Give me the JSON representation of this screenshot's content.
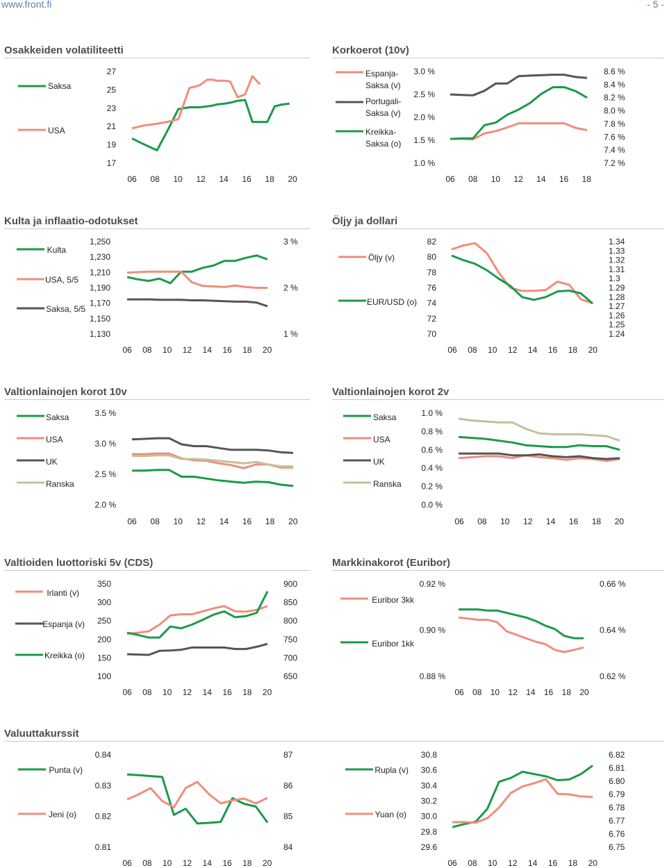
{
  "header": {
    "site_url": "www.front.fi",
    "page_number": "- 5 -"
  },
  "colors": {
    "green": "#1a9a4a",
    "salmon": "#ee8e7a",
    "gray": "#555555",
    "khaki": "#c8bf98",
    "title": "#4d4d4d",
    "rule": "#c8c8c8"
  },
  "sections": {
    "vol": "Osakkeiden volatiliteetti",
    "korko": "Korkoerot (10v)",
    "kulta": "Kulta ja inflaatio-odotukset",
    "oljy": "Öljy ja dollari",
    "gov10": "Valtionlainojen korot 10v",
    "gov2": "Valtionlainojen korot 2v",
    "cds": "Valtioiden luottoriski 5v (CDS)",
    "euribor": "Markkinakorot (Euribor)",
    "fx": "Valuuttakurssit"
  },
  "chart_data": [
    {
      "id": "vol",
      "type": "line",
      "title": "Osakkeiden volatiliteetti",
      "x": [
        0,
        0.12,
        0.27,
        0.38,
        0.5,
        0.62,
        0.73,
        0.81,
        0.88,
        0.91,
        1.0,
        1.06,
        1.14,
        1.22,
        1.3,
        1.38,
        1.46,
        1.54,
        1.62,
        1.7,
        1.74
      ],
      "x_ticks": [
        "06",
        "08",
        "10",
        "12",
        "14",
        "16",
        "18",
        "20"
      ],
      "y_left": {
        "ticks": [
          "27",
          "25",
          "23",
          "21",
          "19",
          "17"
        ],
        "range": [
          17,
          27
        ]
      },
      "series": [
        {
          "name": "Saksa",
          "axis": "left",
          "color": "green",
          "values": [
            19.7,
            19.1,
            18.4,
            20.5,
            22.9,
            23.1,
            23.1,
            23.2,
            23.3,
            23.4,
            23.5,
            23.6,
            23.8,
            23.9,
            21.5,
            21.5,
            21.5,
            23.2,
            23.4,
            23.5,
            null
          ]
        },
        {
          "name": "USA",
          "axis": "left",
          "color": "salmon",
          "values": [
            20.8,
            21.1,
            21.3,
            21.5,
            21.8,
            25.2,
            25.5,
            26.1,
            26.1,
            26.0,
            26.0,
            25.9,
            24.2,
            24.5,
            26.5,
            25.6,
            null,
            null,
            null,
            null,
            null
          ]
        }
      ]
    },
    {
      "id": "korko",
      "type": "line",
      "title": "Korkoerot (10v)",
      "x_ticks": [
        "06",
        "08",
        "10",
        "12",
        "14",
        "16",
        "18"
      ],
      "y_left": {
        "ticks": [
          "3.0 %",
          "2.5 %",
          "2.0 %",
          "1.5 %",
          "1.0 %"
        ],
        "range": [
          1.0,
          3.0
        ]
      },
      "y_right": {
        "ticks": [
          "8.6 %",
          "8.4 %",
          "8.2 %",
          "8.0 %",
          "7.8 %",
          "7.6 %",
          "7.4 %",
          "7.2 %"
        ],
        "range": [
          7.2,
          8.6
        ]
      },
      "series": [
        {
          "name": "Espanja-Saksa (v)",
          "axis": "left",
          "color": "salmon",
          "values": [
            1.53,
            1.53,
            1.52,
            1.65,
            1.7,
            1.78,
            1.87,
            1.87,
            1.87,
            1.87,
            1.87,
            1.77,
            1.72
          ]
        },
        {
          "name": "Portugali-Saksa (v)",
          "axis": "left",
          "color": "gray",
          "values": [
            2.5,
            2.49,
            2.48,
            2.58,
            2.74,
            2.74,
            2.9,
            2.91,
            2.92,
            2.93,
            2.93,
            2.88,
            2.86
          ]
        },
        {
          "name": "Kreikka-Saksa (o)",
          "axis": "right",
          "color": "green",
          "values": [
            7.57,
            7.58,
            7.58,
            7.78,
            7.82,
            7.94,
            8.02,
            8.12,
            8.26,
            8.36,
            8.36,
            8.3,
            8.2
          ]
        }
      ]
    },
    {
      "id": "kulta",
      "type": "line",
      "title": "Kulta ja inflaatio-odotukset",
      "x_ticks": [
        "06",
        "08",
        "10",
        "12",
        "14",
        "16",
        "18",
        "20"
      ],
      "y_left": {
        "ticks": [
          "1,250",
          "1,230",
          "1,210",
          "1,190",
          "1,170",
          "1,150",
          "1,130"
        ],
        "range": [
          1130,
          1250
        ]
      },
      "y_right": {
        "ticks": [
          "3 %",
          "2 %",
          "1 %"
        ],
        "range": [
          1,
          3
        ]
      },
      "series": [
        {
          "name": "Kulta",
          "axis": "left",
          "color": "green",
          "values": [
            1204,
            1201,
            1199,
            1202,
            1196,
            1211,
            1211,
            1216,
            1219,
            1225,
            1225,
            1229,
            1232,
            1227
          ]
        },
        {
          "name": "USA, 5/5",
          "axis": "right",
          "color": "salmon",
          "values": [
            2.33,
            2.34,
            2.35,
            2.35,
            2.35,
            2.35,
            2.12,
            2.04,
            2.03,
            2.02,
            2.05,
            2.02,
            2.0,
            2.0
          ]
        },
        {
          "name": "Saksa, 5/5",
          "axis": "right",
          "color": "gray",
          "values": [
            1.75,
            1.75,
            1.75,
            1.74,
            1.74,
            1.74,
            1.73,
            1.73,
            1.72,
            1.71,
            1.7,
            1.7,
            1.68,
            1.6
          ]
        }
      ]
    },
    {
      "id": "oljy",
      "type": "line",
      "title": "Öljy ja dollari",
      "x_ticks": [
        "06",
        "08",
        "10",
        "12",
        "14",
        "16",
        "18",
        "20"
      ],
      "y_left": {
        "ticks": [
          "82",
          "80",
          "78",
          "76",
          "74",
          "72",
          "70"
        ],
        "range": [
          70,
          82
        ]
      },
      "y_right": {
        "ticks": [
          "1.34",
          "1.33",
          "1.32",
          "1.31",
          "1.3",
          "1.29",
          "1.28",
          "1.27",
          "1.26",
          "1.25",
          "1.24"
        ],
        "range": [
          1.24,
          1.34
        ]
      },
      "series": [
        {
          "name": "Öljy (v)",
          "axis": "left",
          "color": "salmon",
          "values": [
            81.0,
            81.5,
            81.8,
            80.5,
            78.0,
            76.0,
            75.6,
            75.6,
            75.7,
            76.8,
            76.4,
            74.5,
            74.0
          ]
        },
        {
          "name": "EUR/USD (o)",
          "axis": "right",
          "color": "green",
          "values": [
            1.325,
            1.32,
            1.316,
            1.309,
            1.3,
            1.292,
            1.28,
            1.277,
            1.28,
            1.286,
            1.287,
            1.284,
            1.273
          ]
        }
      ]
    },
    {
      "id": "gov10",
      "type": "line",
      "title": "Valtionlainojen korot 10v",
      "x_ticks": [
        "06",
        "08",
        "10",
        "12",
        "14",
        "16",
        "18",
        "20"
      ],
      "y_left": {
        "ticks": [
          "3.5 %",
          "3.0 %",
          "2.5 %",
          "2.0 %"
        ],
        "range": [
          2.0,
          3.5
        ]
      },
      "series": [
        {
          "name": "Saksa",
          "axis": "left",
          "color": "green",
          "values": [
            2.56,
            2.56,
            2.57,
            2.57,
            2.46,
            2.46,
            2.43,
            2.4,
            2.38,
            2.36,
            2.38,
            2.37,
            2.33,
            2.31
          ]
        },
        {
          "name": "USA",
          "axis": "left",
          "color": "salmon",
          "values": [
            2.83,
            2.83,
            2.84,
            2.84,
            2.76,
            2.73,
            2.72,
            2.68,
            2.65,
            2.6,
            2.66,
            2.66,
            2.61,
            2.61
          ]
        },
        {
          "name": "UK",
          "axis": "left",
          "color": "gray",
          "values": [
            3.07,
            3.08,
            3.09,
            3.09,
            2.99,
            2.96,
            2.96,
            2.93,
            2.9,
            2.9,
            2.9,
            2.89,
            2.86,
            2.85
          ]
        },
        {
          "name": "Ranska",
          "axis": "left",
          "color": "khaki",
          "values": [
            2.8,
            2.8,
            2.81,
            2.81,
            2.75,
            2.75,
            2.74,
            2.72,
            2.7,
            2.68,
            2.7,
            2.66,
            2.63,
            2.63
          ]
        }
      ]
    },
    {
      "id": "gov2",
      "type": "line",
      "title": "Valtionlainojen korot 2v",
      "x_ticks": [
        "06",
        "08",
        "10",
        "12",
        "14",
        "16",
        "18",
        "20"
      ],
      "y_left": {
        "ticks": [
          "1.0 %",
          "0.8 %",
          "0.6 %",
          "0.4 %",
          "0.2 %",
          "0.0 %"
        ],
        "range": [
          0.0,
          1.0
        ]
      },
      "series": [
        {
          "name": "Saksa",
          "axis": "left",
          "color": "green",
          "values": [
            0.74,
            0.73,
            0.72,
            0.7,
            0.68,
            0.65,
            0.64,
            0.63,
            0.63,
            0.65,
            0.64,
            0.64,
            0.6
          ]
        },
        {
          "name": "USA",
          "axis": "left",
          "color": "salmon",
          "values": [
            0.51,
            0.52,
            0.53,
            0.53,
            0.51,
            0.54,
            0.52,
            0.51,
            0.49,
            0.51,
            0.5,
            0.48,
            0.5
          ]
        },
        {
          "name": "UK",
          "axis": "left",
          "color": "gray",
          "values": [
            0.56,
            0.56,
            0.56,
            0.56,
            0.54,
            0.54,
            0.55,
            0.53,
            0.52,
            0.53,
            0.51,
            0.5,
            0.51
          ]
        },
        {
          "name": "Ranska",
          "axis": "left",
          "color": "khaki",
          "values": [
            0.94,
            0.92,
            0.91,
            0.9,
            0.9,
            0.83,
            0.78,
            0.77,
            0.77,
            0.77,
            0.76,
            0.75,
            0.7
          ]
        }
      ]
    },
    {
      "id": "cds",
      "type": "line",
      "title": "Valtioiden luottoriski 5v (CDS)",
      "x_ticks": [
        "06",
        "08",
        "10",
        "12",
        "14",
        "16",
        "18",
        "20"
      ],
      "y_left": {
        "ticks": [
          "350",
          "300",
          "250",
          "200",
          "150",
          "100"
        ],
        "range": [
          100,
          350
        ]
      },
      "y_right": {
        "ticks": [
          "900",
          "850",
          "800",
          "750",
          "700",
          "650"
        ],
        "range": [
          650,
          900
        ]
      },
      "series": [
        {
          "name": "Irlanti (v)",
          "axis": "left",
          "color": "salmon",
          "values": [
            215,
            218,
            222,
            240,
            265,
            268,
            268,
            276,
            284,
            290,
            276,
            275,
            280,
            290
          ]
        },
        {
          "name": "Espanja (v)",
          "axis": "left",
          "color": "gray",
          "values": [
            160,
            159,
            158,
            169,
            170,
            172,
            178,
            178,
            178,
            178,
            174,
            174,
            180,
            188
          ]
        },
        {
          "name": "Kreikka (o)",
          "axis": "right",
          "color": "green",
          "values": [
            768,
            762,
            755,
            755,
            785,
            780,
            790,
            803,
            817,
            826,
            810,
            813,
            822,
            880
          ]
        }
      ]
    },
    {
      "id": "euribor",
      "type": "line",
      "title": "Markkinakorot (Euribor)",
      "x_ticks": [
        "06",
        "08",
        "10",
        "12",
        "14",
        "16",
        "18",
        "20"
      ],
      "y_left": {
        "ticks": [
          "0.92 %",
          "0.90 %",
          "0.88 %"
        ],
        "range": [
          0.88,
          0.92
        ]
      },
      "y_right": {
        "ticks": [
          "0.66 %",
          "0.64 %",
          "0.62 %"
        ],
        "range": [
          0.62,
          0.66
        ]
      },
      "series": [
        {
          "name": "Euribor 3kk",
          "axis": "left",
          "color": "salmon",
          "values": [
            0.9055,
            0.905,
            0.9045,
            0.9045,
            0.9035,
            0.8995,
            0.898,
            0.8965,
            0.895,
            0.894,
            0.8915,
            0.8905,
            0.8915,
            0.8925
          ]
        },
        {
          "name": "Euribor 1kk",
          "axis": "right",
          "color": "green",
          "values": [
            0.649,
            0.649,
            0.649,
            0.6485,
            0.6485,
            0.6475,
            0.6465,
            0.6455,
            0.644,
            0.642,
            0.6405,
            0.6375,
            0.6365,
            0.6365
          ]
        }
      ]
    },
    {
      "id": "fx",
      "type": "line",
      "title": "Valuuttakurssit",
      "layout": "two-panels",
      "panels": [
        {
          "x_ticks": [
            "06",
            "08",
            "10",
            "12",
            "14",
            "16",
            "18",
            "20"
          ],
          "y_left": {
            "ticks": [
              "0.84",
              "0.83",
              "0.82",
              "0.81"
            ],
            "range": [
              0.81,
              0.84
            ]
          },
          "y_right": {
            "ticks": [
              "87",
              "86",
              "85",
              "84"
            ],
            "range": [
              84,
              87
            ]
          },
          "series": [
            {
              "name": "Punta (v)",
              "axis": "left",
              "color": "green",
              "values": [
                0.8336,
                0.8334,
                0.8331,
                0.8328,
                0.8205,
                0.8225,
                0.8177,
                0.8179,
                0.8182,
                0.8259,
                0.8241,
                0.8232,
                0.818
              ]
            },
            {
              "name": "Jeni (o)",
              "axis": "right",
              "color": "salmon",
              "values": [
                85.55,
                85.72,
                85.92,
                85.5,
                85.3,
                85.92,
                86.12,
                85.72,
                85.42,
                85.52,
                85.58,
                85.42,
                85.6
              ]
            }
          ]
        },
        {
          "x_ticks": [
            "06",
            "08",
            "10",
            "12",
            "14",
            "16",
            "18",
            "20"
          ],
          "y_left": {
            "ticks": [
              "30.8",
              "30.6",
              "30.4",
              "30.2",
              "30.0",
              "29.8",
              "29.6"
            ],
            "range": [
              29.6,
              30.8
            ]
          },
          "y_right": {
            "ticks": [
              "6.82",
              "6.81",
              "6.80",
              "6.79",
              "6.78",
              "6.77",
              "6.76",
              "6.75"
            ],
            "range": [
              6.75,
              6.82
            ]
          },
          "series": [
            {
              "name": "Rupla (v)",
              "axis": "left",
              "color": "green",
              "values": [
                29.86,
                29.9,
                29.93,
                30.1,
                30.45,
                30.5,
                30.58,
                30.55,
                30.52,
                30.47,
                30.48,
                30.55,
                30.66
              ]
            },
            {
              "name": "Yuan (o)",
              "axis": "right",
              "color": "salmon",
              "values": [
                6.769,
                6.769,
                6.7685,
                6.772,
                6.78,
                6.791,
                6.796,
                6.7985,
                6.8015,
                6.7905,
                6.79,
                6.7885,
                6.788
              ]
            }
          ]
        }
      ]
    }
  ]
}
